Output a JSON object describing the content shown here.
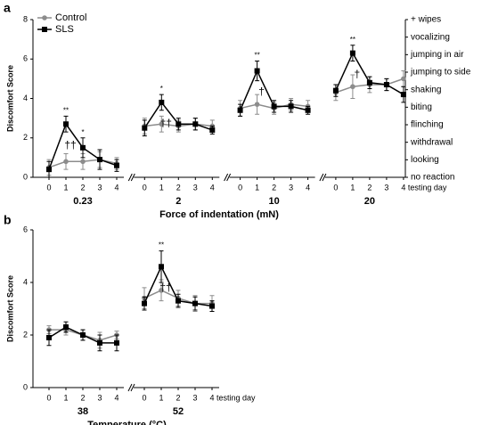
{
  "chart_data": [
    {
      "type": "line",
      "panel": "a",
      "ylabel": "Discomfort Score",
      "xlabel": "Force of indentation (mN)",
      "groups": [
        "0.23",
        "2",
        "10",
        "20"
      ],
      "categories": [
        0,
        1,
        2,
        3,
        4
      ],
      "x_suffix": "testing day",
      "ylim": [
        0,
        8
      ],
      "yticks": [
        0,
        2,
        4,
        6,
        8
      ],
      "right_labels": [
        "no reaction",
        "looking",
        "withdrawal",
        "flinching",
        "biting",
        "shaking",
        "jumping to side",
        "jumping in air",
        "vocalizing",
        "+ wipes"
      ],
      "legend": "upper left",
      "series": [
        {
          "name": "Control",
          "color": "#8c8c8c",
          "marker": "circle",
          "values": [
            [
              0.5,
              0.8,
              0.8,
              0.9,
              0.7
            ],
            [
              2.6,
              2.7,
              2.6,
              2.7,
              2.6
            ],
            [
              3.5,
              3.7,
              3.5,
              3.7,
              3.6
            ],
            [
              4.3,
              4.6,
              4.7,
              4.7,
              5.0
            ]
          ],
          "errors": [
            [
              0.4,
              0.4,
              0.4,
              0.4,
              0.3
            ],
            [
              0.4,
              0.4,
              0.3,
              0.3,
              0.3
            ],
            [
              0.4,
              0.5,
              0.3,
              0.3,
              0.3
            ],
            [
              0.4,
              0.6,
              0.4,
              0.3,
              0.4
            ]
          ]
        },
        {
          "name": "SLS",
          "color": "#000000",
          "marker": "square",
          "values": [
            [
              0.4,
              2.7,
              1.5,
              0.9,
              0.6
            ],
            [
              2.5,
              3.8,
              2.7,
              2.7,
              2.4
            ],
            [
              3.4,
              5.4,
              3.6,
              3.6,
              3.4
            ],
            [
              4.4,
              6.3,
              4.8,
              4.7,
              4.2
            ]
          ],
          "errors": [
            [
              0.4,
              0.4,
              0.5,
              0.5,
              0.3
            ],
            [
              0.4,
              0.4,
              0.3,
              0.3,
              0.2
            ],
            [
              0.3,
              0.5,
              0.3,
              0.3,
              0.2
            ],
            [
              0.3,
              0.4,
              0.3,
              0.3,
              0.4
            ]
          ],
          "significance": [
            [
              null,
              "**",
              "*",
              null,
              null
            ],
            [
              null,
              "*",
              null,
              null,
              null
            ],
            [
              null,
              "**",
              null,
              null,
              null
            ],
            [
              null,
              "**",
              null,
              null,
              null
            ]
          ],
          "daggers": [
            [
              null,
              "††",
              null,
              null,
              null
            ],
            [
              null,
              "††",
              null,
              null,
              null
            ],
            [
              null,
              "†",
              null,
              null,
              null
            ],
            [
              null,
              "†",
              null,
              null,
              null
            ]
          ]
        }
      ]
    },
    {
      "type": "line",
      "panel": "b",
      "ylabel": "Discomfort Score",
      "xlabel": "Temperature (°C)",
      "groups": [
        "38",
        "52"
      ],
      "categories": [
        0,
        1,
        2,
        3,
        4
      ],
      "x_suffix": "testing day",
      "ylim": [
        0,
        6
      ],
      "yticks": [
        0,
        2,
        4,
        6
      ],
      "series": [
        {
          "name": "Control",
          "color": "#8c8c8c",
          "marker": "circle",
          "values": [
            [
              2.2,
              2.2,
              2.0,
              1.8,
              2.0
            ],
            [
              3.4,
              3.7,
              3.4,
              3.2,
              3.2
            ]
          ],
          "errors": [
            [
              0.15,
              0.2,
              0.2,
              0.3,
              0.15
            ],
            [
              0.4,
              0.4,
              0.3,
              0.3,
              0.3
            ]
          ]
        },
        {
          "name": "SLS",
          "color": "#000000",
          "marker": "square",
          "values": [
            [
              1.9,
              2.3,
              2.0,
              1.7,
              1.7
            ],
            [
              3.2,
              4.6,
              3.3,
              3.2,
              3.1
            ]
          ],
          "errors": [
            [
              0.3,
              0.2,
              0.2,
              0.3,
              0.3
            ],
            [
              0.25,
              0.6,
              0.25,
              0.25,
              0.2
            ]
          ],
          "significance": [
            [
              null,
              null,
              null,
              null,
              null
            ],
            [
              null,
              "**",
              null,
              null,
              null
            ]
          ],
          "daggers": [
            [
              null,
              null,
              null,
              null,
              null
            ],
            [
              null,
              "††",
              null,
              null,
              null
            ]
          ]
        }
      ]
    }
  ]
}
